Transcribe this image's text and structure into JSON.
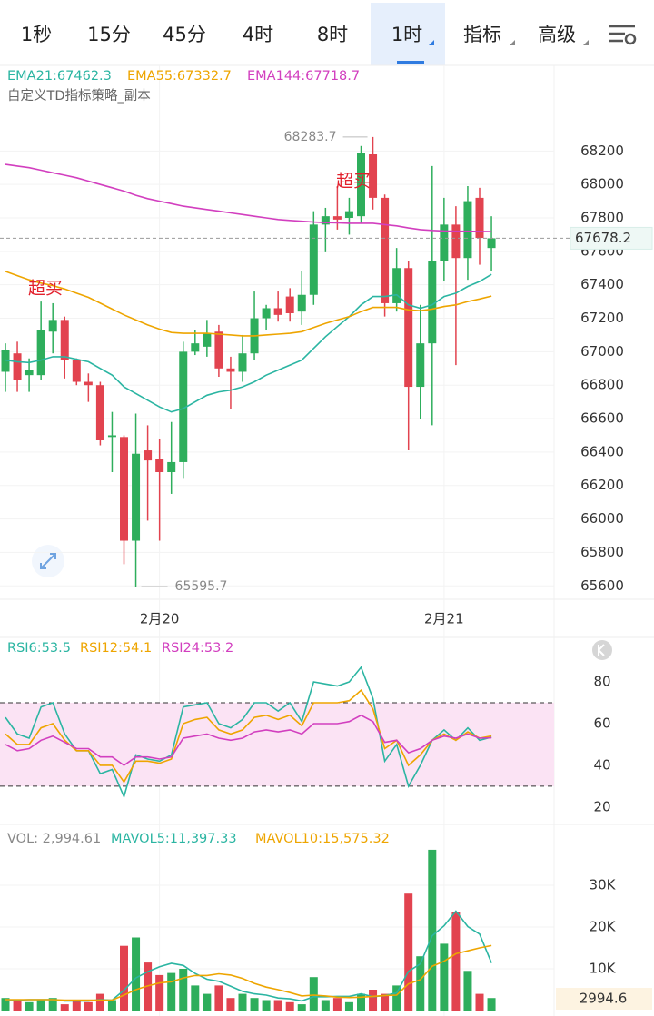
{
  "toolbar": {
    "items": [
      "1秒",
      "15分",
      "45分",
      "4时",
      "8时",
      "1时",
      "指标",
      "高级"
    ],
    "active": 5
  },
  "chart_data": [
    {
      "type": "candlestick",
      "subtitle": "自定义TD指标策略_副本",
      "annotations": [
        "超买",
        "超买"
      ],
      "categories": [
        null,
        null,
        null,
        null,
        null,
        null,
        null,
        null,
        null,
        null,
        null,
        null,
        null,
        "2月20",
        null,
        null,
        null,
        null,
        null,
        null,
        null,
        null,
        null,
        null,
        null,
        null,
        null,
        null,
        null,
        null,
        null,
        null,
        null,
        null,
        null,
        null,
        null,
        "2月21",
        null,
        null,
        null,
        null
      ],
      "open": [
        66880,
        66990,
        66860,
        66860,
        67120,
        67190,
        66950,
        66820,
        66800,
        66490,
        66490,
        65870,
        66410,
        66360,
        66280,
        66340,
        67000,
        67030,
        67120,
        66900,
        66880,
        66990,
        67200,
        67260,
        67330,
        67240,
        67340,
        67760,
        67810,
        67800,
        67810,
        68180,
        67920,
        67290,
        67500,
        66790,
        67050,
        67540,
        67760,
        67560,
        67920,
        67620
      ],
      "high": [
        67050,
        67060,
        66960,
        67300,
        67290,
        67210,
        66960,
        66870,
        66820,
        66640,
        66500,
        66630,
        66560,
        66480,
        66580,
        67060,
        67130,
        67190,
        67160,
        66970,
        67100,
        67360,
        67280,
        67360,
        67380,
        67480,
        67840,
        67860,
        67990,
        67920,
        68230,
        68283.7,
        67940,
        67620,
        67540,
        67280,
        68110,
        67920,
        67870,
        67990,
        67980,
        67810
      ],
      "low": [
        66760,
        66760,
        66760,
        66830,
        66990,
        66840,
        66800,
        66700,
        66440,
        66280,
        65730,
        65595.7,
        65990,
        65870,
        66150,
        66240,
        66980,
        66970,
        66850,
        66660,
        66820,
        66950,
        67130,
        67180,
        67180,
        67160,
        67280,
        67600,
        67730,
        67700,
        67770,
        67850,
        67210,
        67240,
        66410,
        66600,
        66560,
        67420,
        66920,
        67430,
        67520,
        67480
      ],
      "close": [
        67010,
        66830,
        66890,
        67130,
        67190,
        66950,
        66820,
        66800,
        66470,
        66500,
        65870,
        66390,
        66350,
        66280,
        66340,
        67000,
        67050,
        67110,
        66900,
        66880,
        66990,
        67200,
        67260,
        67220,
        67230,
        67340,
        67760,
        67810,
        67790,
        67840,
        68190,
        67920,
        67290,
        67500,
        66790,
        67050,
        67540,
        67760,
        67560,
        67900,
        67680,
        67678.2
      ],
      "up_color": "#2eae5c",
      "down_color": "#e2434f",
      "lines": [
        {
          "label": "EMA21:67462.3",
          "color": "#2bb5a2",
          "values": [
            66950,
            66940,
            66935,
            66950,
            66970,
            66970,
            66955,
            66940,
            66900,
            66860,
            66790,
            66750,
            66710,
            66670,
            66640,
            66660,
            66700,
            66740,
            66760,
            66770,
            66790,
            66820,
            66860,
            66890,
            66920,
            66950,
            67020,
            67090,
            67150,
            67210,
            67280,
            67330,
            67330,
            67340,
            67280,
            67260,
            67280,
            67330,
            67350,
            67390,
            67420,
            67462.3
          ]
        },
        {
          "label": "EMA55:67332.7",
          "color": "#eea500",
          "values": [
            67480,
            67455,
            67430,
            67410,
            67395,
            67375,
            67350,
            67325,
            67290,
            67255,
            67220,
            67190,
            67160,
            67135,
            67115,
            67110,
            67110,
            67110,
            67105,
            67100,
            67095,
            67095,
            67100,
            67105,
            67110,
            67120,
            67145,
            67170,
            67190,
            67210,
            67240,
            67265,
            67265,
            67265,
            67250,
            67245,
            67255,
            67270,
            67280,
            67300,
            67315,
            67332.7
          ]
        },
        {
          "label": "EMA144:67718.7",
          "color": "#d23fbf",
          "values": [
            68120,
            68110,
            68100,
            68085,
            68070,
            68055,
            68040,
            68020,
            68000,
            67980,
            67960,
            67935,
            67915,
            67900,
            67885,
            67870,
            67860,
            67850,
            67840,
            67830,
            67820,
            67810,
            67800,
            67790,
            67785,
            67780,
            67775,
            67772,
            67770,
            67768,
            67768,
            67768,
            67760,
            67752,
            67740,
            67730,
            67725,
            67722,
            67720,
            67720,
            67719,
            67718.7
          ]
        }
      ],
      "ylim": [
        65520,
        68370
      ],
      "yticks": [
        65600,
        65800,
        66000,
        66200,
        66400,
        66600,
        66800,
        67000,
        67200,
        67400,
        67600,
        67800,
        68000,
        68200
      ],
      "grid": true
    },
    {
      "type": "line",
      "ylim": [
        13,
        100
      ],
      "yticks": [
        20,
        40,
        60,
        80
      ],
      "band": [
        30,
        70
      ],
      "band_color": "#fbe3f4",
      "series": [
        {
          "label": "RSI6:53.5",
          "color": "#2bb5a2",
          "values": [
            63,
            55,
            53,
            68,
            70,
            55,
            47,
            47,
            36,
            38,
            25,
            45,
            43,
            42,
            45,
            68,
            69,
            70,
            60,
            58,
            62,
            70,
            70,
            66,
            70,
            61,
            80,
            79,
            78,
            80,
            87,
            72,
            42,
            50,
            30,
            40,
            52,
            57,
            52,
            58,
            52,
            53.5
          ]
        },
        {
          "label": "RSI12:54.1",
          "color": "#eea500",
          "values": [
            55,
            50,
            50,
            58,
            60,
            52,
            47,
            47,
            40,
            40,
            32,
            42,
            42,
            41,
            43,
            60,
            62,
            63,
            57,
            55,
            57,
            63,
            64,
            62,
            64,
            59,
            70,
            70,
            70,
            71,
            76,
            67,
            48,
            52,
            40,
            45,
            52,
            55,
            52,
            56,
            53,
            54.1
          ]
        },
        {
          "label": "RSI24:53.2",
          "color": "#d23fbf",
          "values": [
            50,
            47,
            48,
            52,
            54,
            51,
            48,
            48,
            44,
            44,
            40,
            44,
            44,
            43,
            44,
            53,
            54,
            55,
            53,
            52,
            53,
            56,
            57,
            56,
            57,
            55,
            60,
            60,
            60,
            61,
            64,
            61,
            51,
            52,
            46,
            48,
            52,
            54,
            53,
            55,
            53,
            53.2
          ]
        }
      ]
    },
    {
      "type": "bar",
      "label": "VOL: 2,994.61",
      "last_label": "2994.6",
      "ylim": [
        0,
        43700
      ],
      "yticks": [
        {
          "value": 10000,
          "label": "10K"
        },
        {
          "value": 20000,
          "label": "20K"
        },
        {
          "value": 30000,
          "label": "30K"
        }
      ],
      "values": [
        3000,
        2500,
        2000,
        2500,
        3000,
        1500,
        2500,
        2000,
        4000,
        2500,
        15500,
        17500,
        11500,
        8500,
        9000,
        10000,
        6000,
        4000,
        6000,
        3000,
        4000,
        3000,
        2500,
        2500,
        2000,
        1500,
        8000,
        2500,
        3000,
        2000,
        4000,
        5000,
        4000,
        6000,
        28000,
        13000,
        38500,
        16000,
        23500,
        9500,
        4000,
        2994.61
      ],
      "lines": [
        {
          "label": "MAVOL5:11,397.33",
          "color": "#2bb5a2",
          "values": [
            2500,
            2500,
            2600,
            2600,
            2600,
            2300,
            2300,
            2300,
            2600,
            2500,
            4900,
            7800,
            9300,
            10500,
            11300,
            10800,
            8900,
            7500,
            7000,
            5800,
            4600,
            4000,
            3700,
            3000,
            2800,
            2300,
            3300,
            3300,
            3400,
            3400,
            4000,
            3300,
            3600,
            4200,
            9400,
            11200,
            17900,
            20300,
            23800,
            20100,
            18300,
            11397.33
          ]
        },
        {
          "label": "MAVOL10:15,575.32",
          "color": "#eea500",
          "values": [
            2600,
            2600,
            2600,
            2600,
            2600,
            2500,
            2500,
            2500,
            2500,
            2500,
            3700,
            5000,
            5900,
            6600,
            6900,
            7800,
            8400,
            8400,
            8800,
            8500,
            7700,
            6500,
            5600,
            5000,
            4300,
            3500,
            3700,
            3500,
            3200,
            3100,
            3200,
            3400,
            3600,
            3700,
            6400,
            7400,
            10600,
            11800,
            13600,
            14300,
            15000,
            15575.32
          ]
        }
      ]
    }
  ]
}
